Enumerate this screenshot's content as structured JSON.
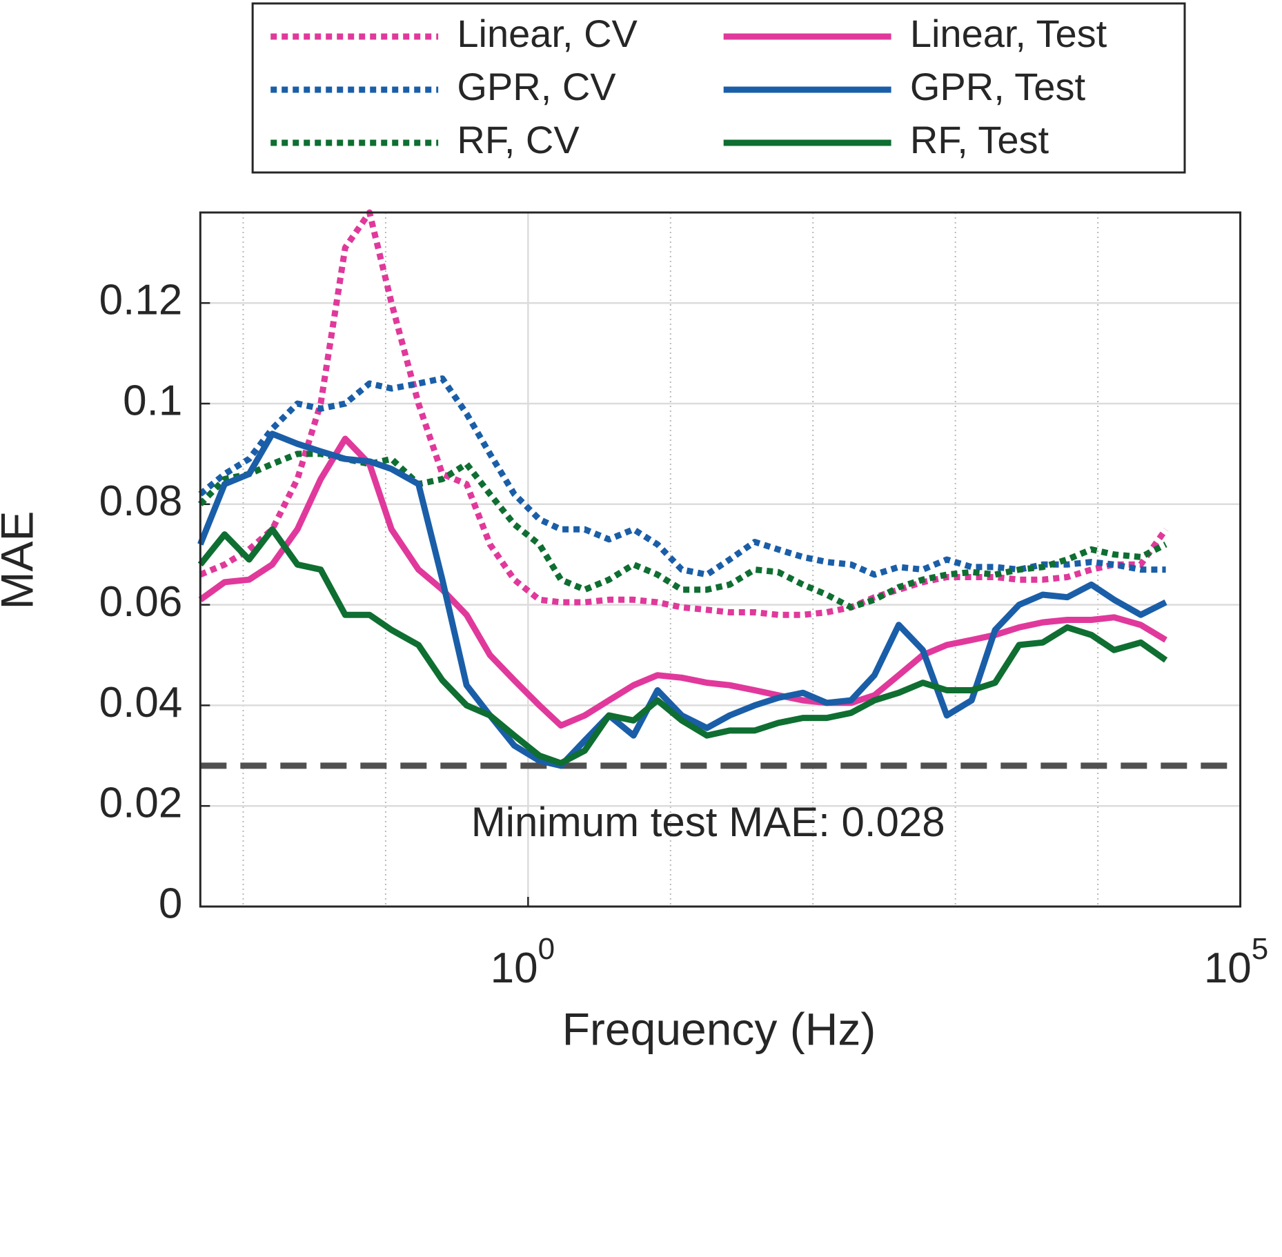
{
  "chart_data": {
    "type": "line",
    "xlabel": "Frequency (Hz)",
    "ylabel": "MAE",
    "xscale": "log",
    "xlim": [
      0.005,
      100000
    ],
    "xticks": [
      {
        "value": 1,
        "label": "10",
        "exponent": "0"
      },
      {
        "value": 100000,
        "label": "10",
        "exponent": "5"
      }
    ],
    "ylim": [
      0,
      0.138
    ],
    "yticks": [
      0,
      0.02,
      0.04,
      0.06,
      0.08,
      0.1,
      0.12
    ],
    "grid": true,
    "minor_grid": true,
    "legend": "top",
    "hline": 0.028,
    "annotation": "Minimum test MAE: 0.028",
    "x": [
      0.005,
      0.0074,
      0.011,
      0.016,
      0.024,
      0.035,
      0.052,
      0.077,
      0.11,
      0.17,
      0.25,
      0.37,
      0.54,
      0.8,
      1.2,
      1.7,
      2.5,
      3.7,
      5.5,
      8.1,
      12,
      18,
      26,
      39,
      57,
      85,
      125,
      185,
      270,
      400,
      590,
      870,
      1300,
      1900,
      2800,
      4100,
      6100,
      9000,
      13000,
      20000,
      30000
    ],
    "series": [
      {
        "name": "Linear, CV",
        "color": "#e0399b",
        "style": "dotted",
        "values": [
          0.066,
          0.068,
          0.071,
          0.075,
          0.085,
          0.1,
          0.131,
          0.138,
          0.12,
          0.1,
          0.086,
          0.084,
          0.072,
          0.065,
          0.061,
          0.0605,
          0.0605,
          0.061,
          0.061,
          0.0605,
          0.0595,
          0.059,
          0.0585,
          0.0585,
          0.058,
          0.058,
          0.0585,
          0.0595,
          0.0615,
          0.063,
          0.0645,
          0.0655,
          0.0655,
          0.0655,
          0.065,
          0.065,
          0.0655,
          0.067,
          0.068,
          0.068,
          0.075
        ]
      },
      {
        "name": "GPR, CV",
        "color": "#1a5ea8",
        "style": "dotted",
        "values": [
          0.082,
          0.086,
          0.089,
          0.095,
          0.1,
          0.099,
          0.1,
          0.104,
          0.103,
          0.104,
          0.105,
          0.098,
          0.09,
          0.082,
          0.077,
          0.075,
          0.075,
          0.073,
          0.075,
          0.072,
          0.067,
          0.066,
          0.069,
          0.0725,
          0.071,
          0.0695,
          0.0685,
          0.068,
          0.066,
          0.0675,
          0.067,
          0.069,
          0.0675,
          0.0675,
          0.067,
          0.068,
          0.068,
          0.0685,
          0.068,
          0.067,
          0.067
        ]
      },
      {
        "name": "RF, CV",
        "color": "#0f6e31",
        "style": "dotted",
        "values": [
          0.08,
          0.085,
          0.086,
          0.088,
          0.09,
          0.09,
          0.089,
          0.088,
          0.089,
          0.084,
          0.085,
          0.088,
          0.082,
          0.076,
          0.072,
          0.065,
          0.063,
          0.065,
          0.068,
          0.066,
          0.063,
          0.063,
          0.064,
          0.067,
          0.0665,
          0.064,
          0.062,
          0.0595,
          0.061,
          0.0635,
          0.065,
          0.066,
          0.0665,
          0.066,
          0.067,
          0.0675,
          0.069,
          0.071,
          0.07,
          0.0695,
          0.072
        ]
      },
      {
        "name": "Linear, Test",
        "color": "#e0399b",
        "style": "solid",
        "values": [
          0.061,
          0.0645,
          0.065,
          0.068,
          0.075,
          0.085,
          0.093,
          0.088,
          0.075,
          0.067,
          0.063,
          0.058,
          0.05,
          0.045,
          0.04,
          0.036,
          0.038,
          0.041,
          0.044,
          0.046,
          0.0455,
          0.0445,
          0.044,
          0.043,
          0.042,
          0.041,
          0.0405,
          0.0405,
          0.042,
          0.046,
          0.05,
          0.052,
          0.053,
          0.054,
          0.0555,
          0.0565,
          0.057,
          0.057,
          0.0575,
          0.056,
          0.053
        ]
      },
      {
        "name": "GPR, Test",
        "color": "#1a5ea8",
        "style": "solid",
        "values": [
          0.072,
          0.084,
          0.086,
          0.094,
          0.092,
          0.0905,
          0.089,
          0.0885,
          0.087,
          0.084,
          0.065,
          0.044,
          0.038,
          0.032,
          0.029,
          0.028,
          0.033,
          0.038,
          0.034,
          0.043,
          0.038,
          0.0355,
          0.038,
          0.04,
          0.0415,
          0.0425,
          0.0405,
          0.041,
          0.046,
          0.056,
          0.051,
          0.038,
          0.041,
          0.055,
          0.06,
          0.062,
          0.0615,
          0.064,
          0.061,
          0.058,
          0.0605
        ]
      },
      {
        "name": "RF, Test",
        "color": "#0f6e31",
        "style": "solid",
        "values": [
          0.068,
          0.074,
          0.069,
          0.075,
          0.068,
          0.067,
          0.058,
          0.058,
          0.055,
          0.052,
          0.045,
          0.04,
          0.038,
          0.034,
          0.03,
          0.0285,
          0.031,
          0.038,
          0.037,
          0.041,
          0.037,
          0.034,
          0.035,
          0.035,
          0.0365,
          0.0375,
          0.0375,
          0.0385,
          0.041,
          0.0425,
          0.0445,
          0.043,
          0.043,
          0.0445,
          0.052,
          0.0525,
          0.0555,
          0.054,
          0.051,
          0.0525,
          0.049
        ]
      }
    ]
  }
}
